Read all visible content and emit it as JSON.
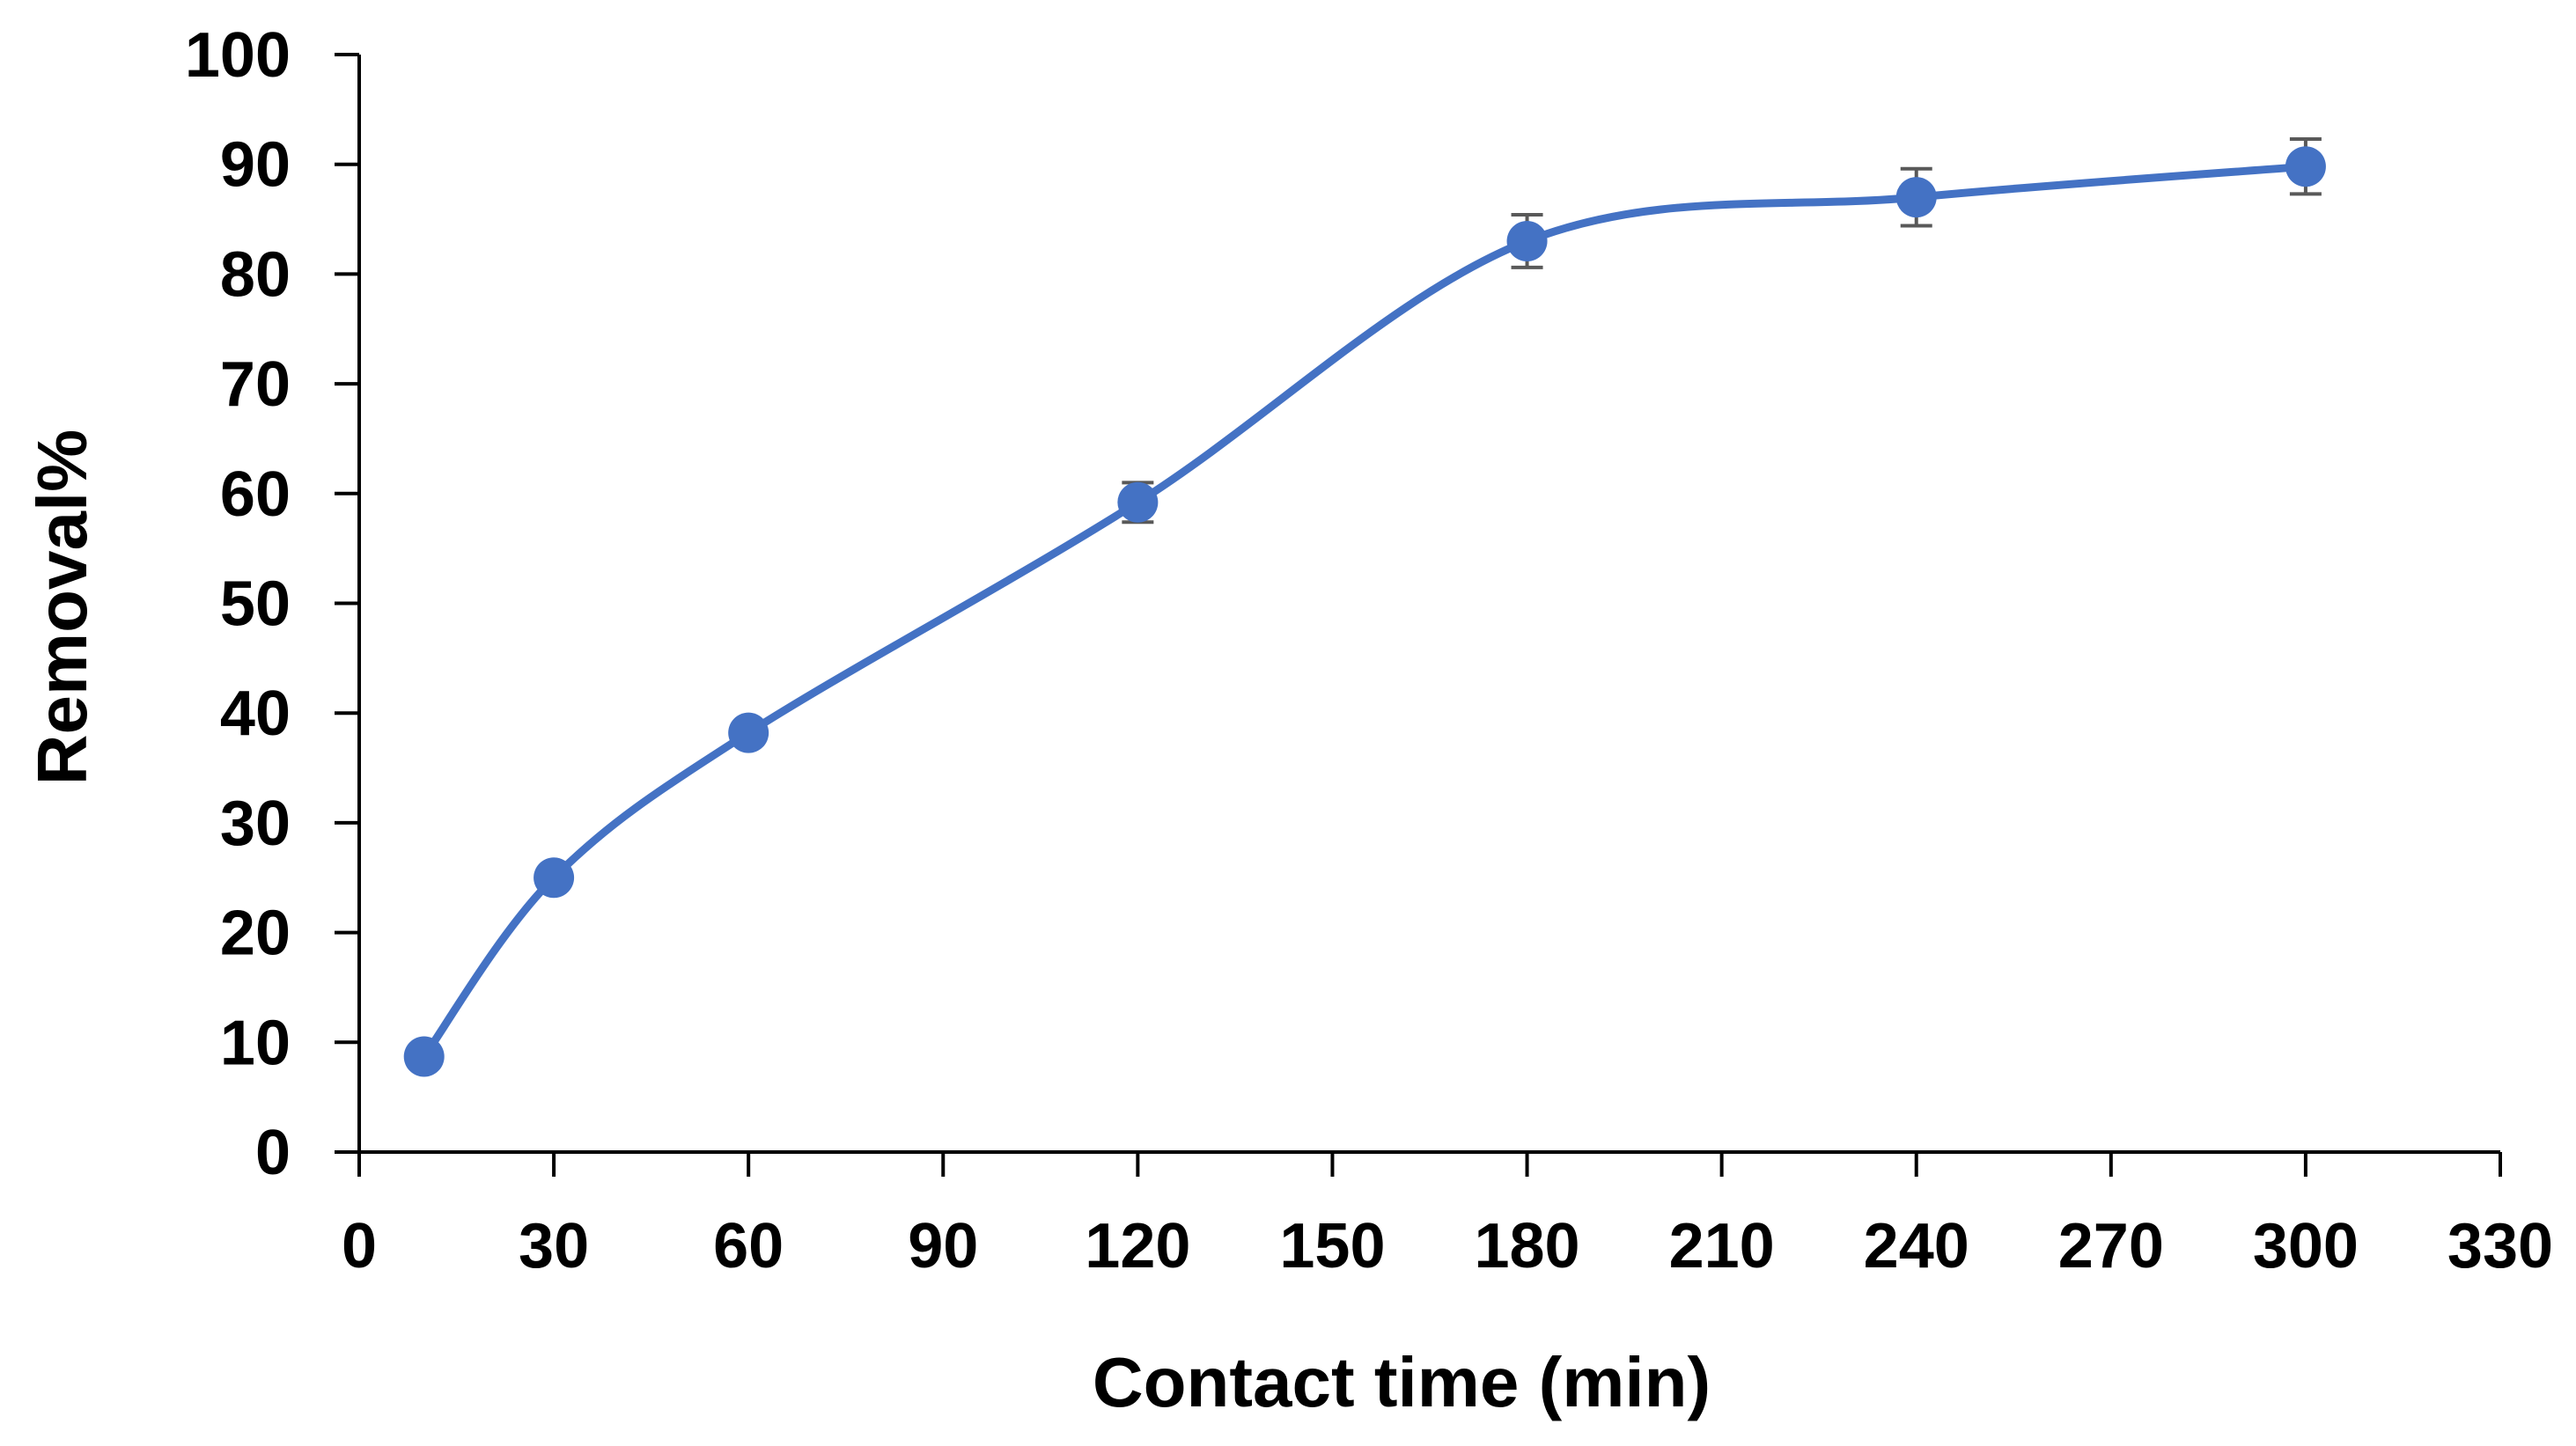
{
  "chart_data": {
    "type": "line",
    "title": "",
    "xlabel": "Contact time (min)",
    "ylabel": "Removal%",
    "xlim": [
      0,
      330
    ],
    "ylim": [
      0,
      100
    ],
    "x_ticks": [
      0,
      30,
      60,
      90,
      120,
      150,
      180,
      210,
      240,
      270,
      300,
      330
    ],
    "y_ticks": [
      0,
      10,
      20,
      30,
      40,
      50,
      60,
      70,
      80,
      90,
      100
    ],
    "grid": false,
    "legend": "none",
    "smooth": true,
    "series": [
      {
        "x": [
          10,
          30,
          60,
          120,
          180,
          240,
          300
        ],
        "y": [
          8.7,
          25.0,
          38.2,
          59.2,
          83.0,
          87.0,
          89.8
        ],
        "error": [
          0.5,
          0.6,
          0.8,
          1.8,
          2.4,
          2.6,
          2.5
        ],
        "color": "#4472C4"
      }
    ],
    "error_bar_color": "#595959",
    "axis_color": "#000000"
  }
}
